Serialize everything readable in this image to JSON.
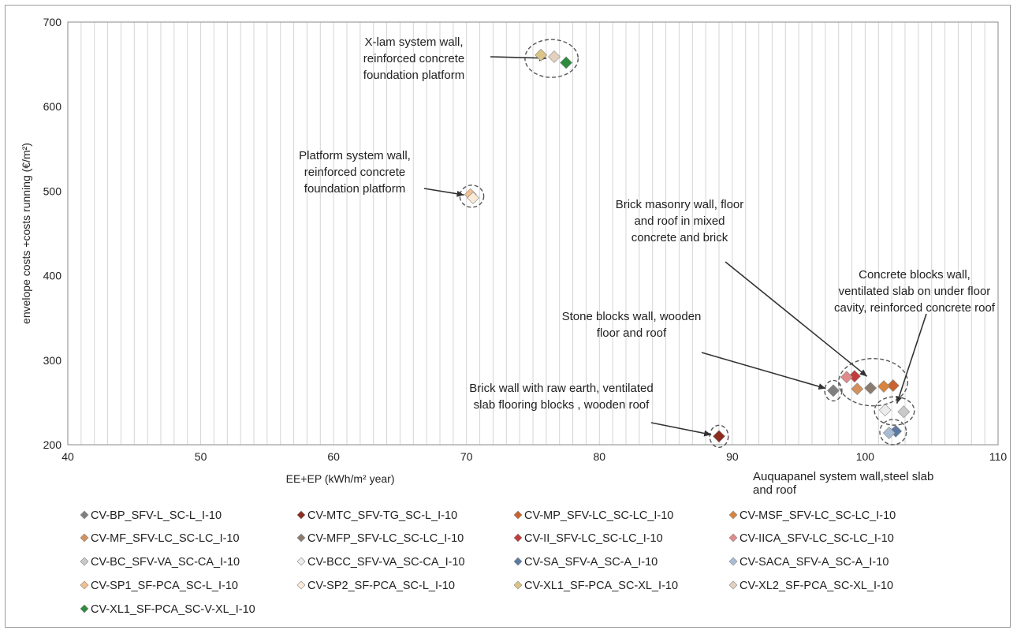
{
  "chart_data": {
    "type": "scatter",
    "title": "",
    "xlabel": "EE+EP (kWh/m² year)",
    "ylabel": "envelope costs +costs running  (€/m²)",
    "xlim": [
      40,
      110
    ],
    "ylim": [
      200,
      700
    ],
    "x_ticks": [
      "40",
      "50",
      "60",
      "70",
      "80",
      "90",
      "100",
      "110"
    ],
    "y_ticks": [
      "200",
      "300",
      "400",
      "500",
      "600",
      "700"
    ],
    "grid": "vertical",
    "legend_position": "bottom",
    "series": [
      {
        "name": "CV-BP_SFV-L_SC-L_I-10",
        "color": "#7f7f7f",
        "points": [
          [
            97.6,
            264
          ]
        ]
      },
      {
        "name": "CV-MTC_SFV-TG_SC-L_I-10",
        "color": "#8b2c1f",
        "points": [
          [
            89.0,
            210
          ]
        ]
      },
      {
        "name": "CV-MP_SFV-LC_SC-LC_I-10",
        "color": "#c8622e",
        "points": [
          [
            102.1,
            270
          ]
        ]
      },
      {
        "name": "CV-MSF_SFV-LC_SC-LC_I-10",
        "color": "#d8843e",
        "points": [
          [
            101.4,
            269
          ]
        ]
      },
      {
        "name": "CV-MF_SFV-LC_SC-LC_I-10",
        "color": "#d2915e",
        "points": [
          [
            99.4,
            266
          ]
        ]
      },
      {
        "name": "CV-MFP_SFV-LC_SC-LC_I-10",
        "color": "#8b7b6e",
        "points": [
          [
            100.4,
            267
          ]
        ]
      },
      {
        "name": "CV-II_SFV-LC_SC-LC_I-10",
        "color": "#c23c3c",
        "points": [
          [
            99.2,
            281
          ]
        ]
      },
      {
        "name": "CV-IICA_SFV-LC_SC-LC_I-10",
        "color": "#e18a8a",
        "points": [
          [
            98.6,
            280
          ]
        ]
      },
      {
        "name": "CV-BC_SFV-VA_SC-CA_I-10",
        "color": "#c9c9c9",
        "points": [
          [
            102.9,
            239
          ]
        ]
      },
      {
        "name": "CV-BCC_SFV-VA_SC-CA_I-10",
        "color": "#ececec",
        "points": [
          [
            101.5,
            241
          ]
        ]
      },
      {
        "name": "CV-SA_SFV-A_SC-A_I-10",
        "color": "#5a7aa2",
        "points": [
          [
            102.3,
            216
          ]
        ]
      },
      {
        "name": "CV-SACA_SFV-A_SC-A_I-10",
        "color": "#a9bcd5",
        "points": [
          [
            101.8,
            214
          ]
        ]
      },
      {
        "name": "CV-SP1_SF-PCA_SC-L_I-10",
        "color": "#f2c08f",
        "points": [
          [
            70.3,
            496
          ]
        ]
      },
      {
        "name": "CV-SP2_SF-PCA_SC-L_I-10",
        "color": "#faebd8",
        "points": [
          [
            70.5,
            492
          ]
        ]
      },
      {
        "name": "CV-XL1_SF-PCA_SC-XL_I-10",
        "color": "#dcc484",
        "points": [
          [
            75.6,
            661
          ]
        ]
      },
      {
        "name": "CV-XL2_SF-PCA_SC-XL_I-10",
        "color": "#e3d1bf",
        "points": [
          [
            76.6,
            659
          ]
        ]
      },
      {
        "name": "CV-XL1_SF-PCA_SC-V-XL_I-10",
        "color": "#2e8b3e",
        "points": [
          [
            77.5,
            652
          ]
        ]
      }
    ],
    "annotations": [
      {
        "lines": [
          "X-lam system wall,",
          "reinforced concrete",
          "foundation platform"
        ],
        "target": [
          76.6,
          657
        ]
      },
      {
        "lines": [
          "Platform system wall,",
          "reinforced concrete",
          "foundation platform"
        ],
        "target": [
          70.4,
          494
        ]
      },
      {
        "lines": [
          "Brick masonry wall, floor",
          "and roof in mixed",
          "concrete and brick"
        ],
        "target": [
          100.6,
          275
        ]
      },
      {
        "lines": [
          "Concrete blocks wall,",
          "ventilated slab on under floor",
          "cavity, reinforced concrete roof"
        ],
        "target": [
          102.2,
          240
        ]
      },
      {
        "lines": [
          "Stone blocks wall, wooden",
          "floor and roof"
        ],
        "target": [
          97.6,
          264
        ]
      },
      {
        "lines": [
          "Brick wall with raw earth, ventilated",
          "slab flooring blocks , wooden roof"
        ],
        "target": [
          89.0,
          210
        ]
      },
      {
        "lines": [
          "Auquapanel system wall,steel slab",
          "and roof"
        ],
        "target": [
          102.1,
          215
        ]
      }
    ]
  }
}
